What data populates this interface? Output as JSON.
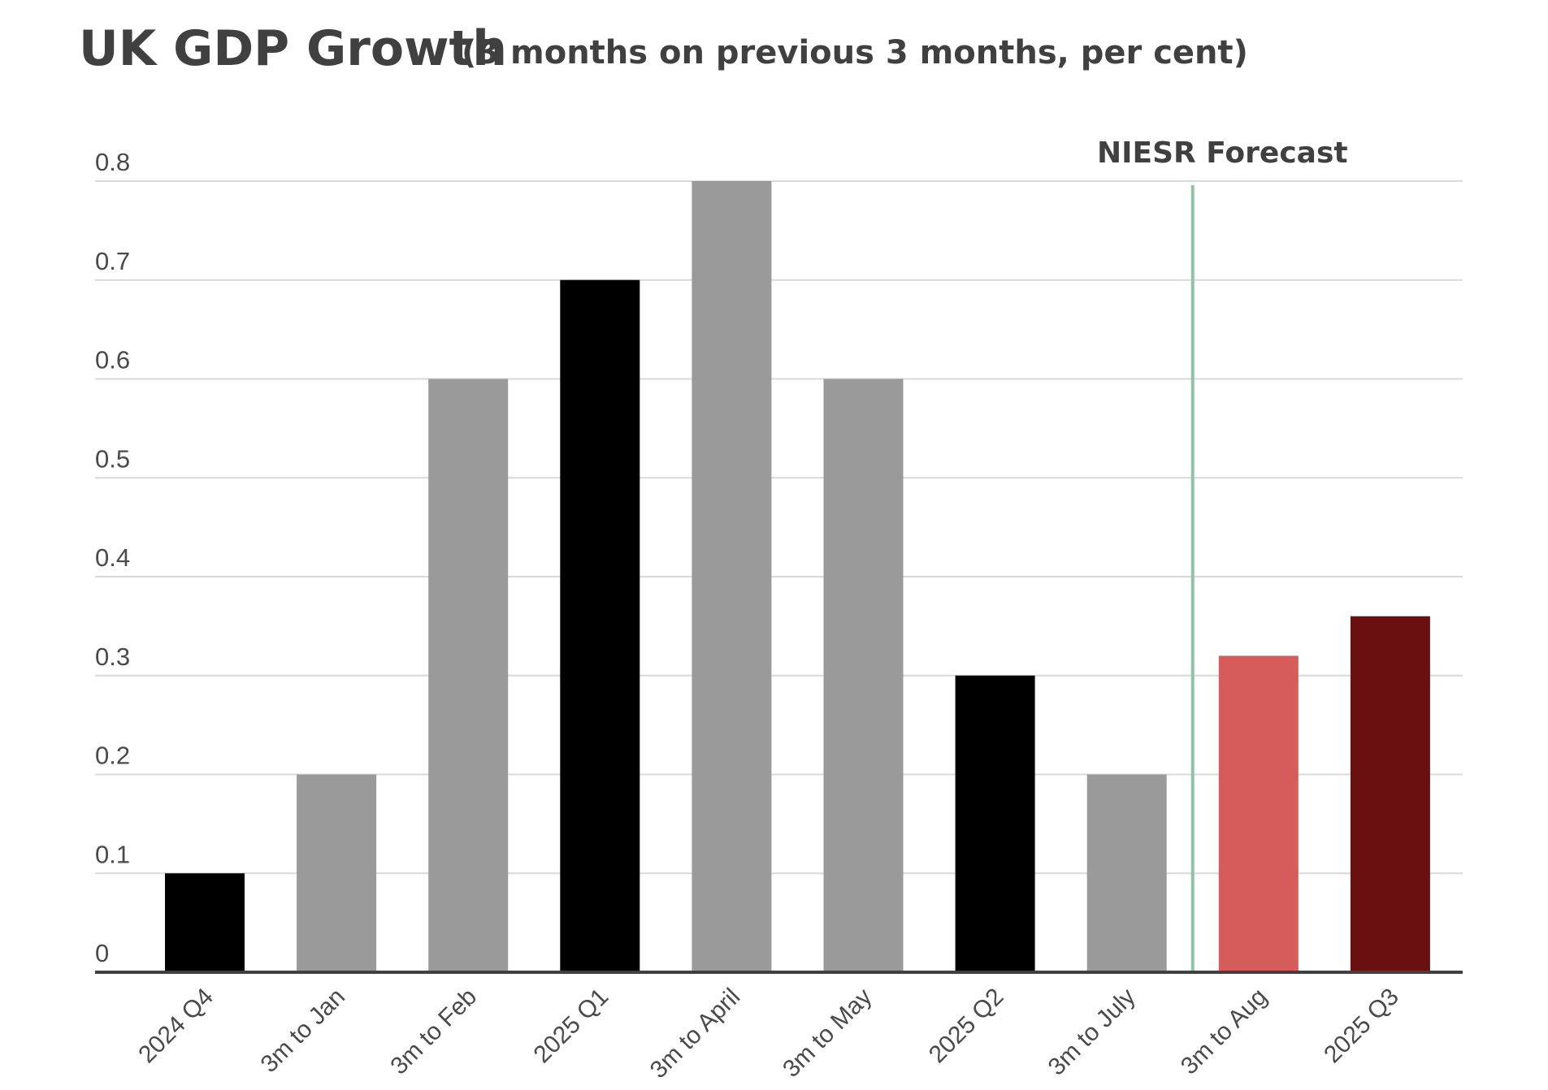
{
  "chart_data": {
    "type": "bar",
    "title": "UK GDP Growth",
    "subtitle": "(3 months on previous 3 months, per cent)",
    "categories": [
      "2024 Q4",
      "3m to Jan",
      "3m to Feb",
      "2025 Q1",
      "3m to April",
      "3m to May",
      "2025 Q2",
      "3m to July",
      "3m to Aug",
      "2025 Q3"
    ],
    "values": [
      0.1,
      0.2,
      0.6,
      0.7,
      0.8,
      0.6,
      0.3,
      0.2,
      0.32,
      0.36
    ],
    "bar_colors": [
      "#000000",
      "#9a9a9a",
      "#9a9a9a",
      "#000000",
      "#9a9a9a",
      "#9a9a9a",
      "#000000",
      "#9a9a9a",
      "#d65c5c",
      "#6a1010"
    ],
    "xlabel": "",
    "ylabel": "",
    "ylim": [
      0,
      0.8
    ],
    "yticks": [
      0,
      0.1,
      0.2,
      0.3,
      0.4,
      0.5,
      0.6,
      0.7,
      0.8
    ],
    "ytick_labels": [
      "0",
      "0.1",
      "0.2",
      "0.3",
      "0.4",
      "0.5",
      "0.6",
      "0.7",
      "0.8"
    ],
    "grid": true,
    "legend": "none",
    "annotation": {
      "text": "NIESR Forecast",
      "between_categories": [
        "3m to July",
        "3m to Aug"
      ],
      "line_color": "#8fc3a5"
    },
    "colors": {
      "text": "#404040",
      "grid": "#d9d9d9",
      "axis": "#404040"
    }
  }
}
